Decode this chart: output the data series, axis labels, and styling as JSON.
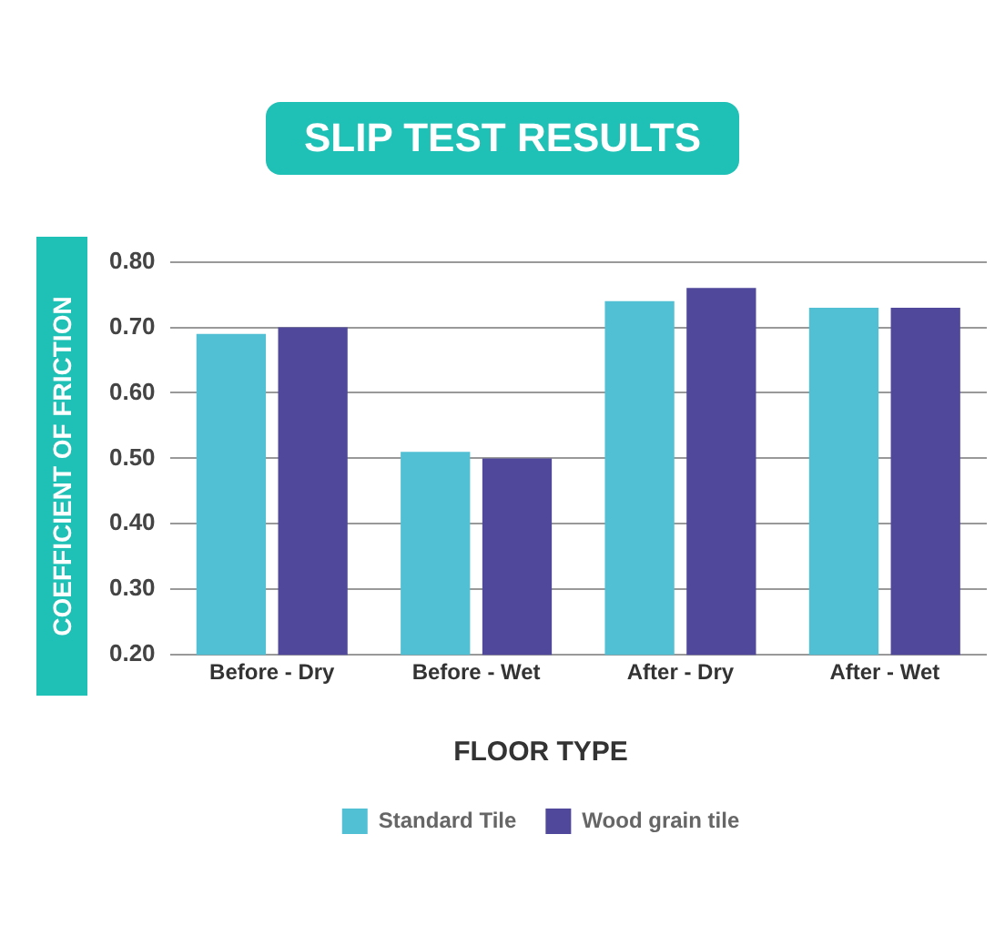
{
  "chart_data": {
    "type": "bar",
    "title": "SLIP TEST RESULTS",
    "ylabel": "COEFFICIENT OF FRICTION",
    "legend_title": "FLOOR TYPE",
    "categories": [
      "Before - Dry",
      "Before - Wet",
      "After - Dry",
      "After - Wet"
    ],
    "series": [
      {
        "name": "Standard Tile",
        "color": "#52c0d4",
        "values": [
          0.69,
          0.51,
          0.74,
          0.73
        ]
      },
      {
        "name": "Wood grain tile",
        "color": "#4f489b",
        "values": [
          0.7,
          0.5,
          0.76,
          0.73
        ]
      }
    ],
    "ylim": [
      0.2,
      0.8
    ],
    "yticks": [
      {
        "value": 0.2,
        "label": "0.20"
      },
      {
        "value": 0.3,
        "label": "0.30"
      },
      {
        "value": 0.4,
        "label": "0.40"
      },
      {
        "value": 0.5,
        "label": "0.50"
      },
      {
        "value": 0.6,
        "label": "0.60"
      },
      {
        "value": 0.7,
        "label": "0.70"
      },
      {
        "value": 0.8,
        "label": "0.80"
      }
    ],
    "grid": "y",
    "legend": "bottom"
  }
}
